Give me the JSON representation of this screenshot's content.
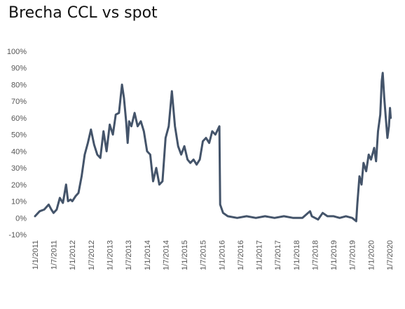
{
  "chart_data": {
    "type": "line",
    "title": "Brecha CCL vs spot",
    "xlabel": "",
    "ylabel": "",
    "y_tick_labels": [
      "100%",
      "90%",
      "80%",
      "70%",
      "60%",
      "50%",
      "40%",
      "30%",
      "20%",
      "10%",
      "0%",
      "-10%"
    ],
    "ylim": [
      -10,
      100
    ],
    "x_tick_labels": [
      "1/1/2011",
      "1/7/2011",
      "1/1/2012",
      "1/7/2012",
      "1/1/2013",
      "1/7/2013",
      "1/1/2014",
      "1/7/2014",
      "1/1/2015",
      "1/7/2015",
      "1/1/2016",
      "1/7/2016",
      "1/1/2017",
      "1/7/2017",
      "1/1/2018",
      "1/7/2018",
      "1/1/2019",
      "1/7/2019",
      "1/1/2020",
      "1/7/2020"
    ],
    "grid": false,
    "legend": "none",
    "line_color": "#44546a",
    "series": [
      {
        "values": [
          [
            "2011-01-01",
            1
          ],
          [
            "2011-02-15",
            4
          ],
          [
            "2011-04-01",
            5
          ],
          [
            "2011-05-15",
            8
          ],
          [
            "2011-06-10",
            5
          ],
          [
            "2011-07-01",
            3
          ],
          [
            "2011-08-01",
            5
          ],
          [
            "2011-09-01",
            12
          ],
          [
            "2011-10-01",
            9
          ],
          [
            "2011-11-01",
            20
          ],
          [
            "2011-11-20",
            10
          ],
          [
            "2011-12-15",
            11
          ],
          [
            "2012-01-01",
            10
          ],
          [
            "2012-02-01",
            13
          ],
          [
            "2012-03-01",
            15
          ],
          [
            "2012-04-01",
            25
          ],
          [
            "2012-05-01",
            38
          ],
          [
            "2012-06-01",
            45
          ],
          [
            "2012-07-01",
            53
          ],
          [
            "2012-08-01",
            44
          ],
          [
            "2012-09-01",
            38
          ],
          [
            "2012-10-01",
            36
          ],
          [
            "2012-11-01",
            52
          ],
          [
            "2012-12-01",
            40
          ],
          [
            "2013-01-01",
            56
          ],
          [
            "2013-02-01",
            50
          ],
          [
            "2013-03-01",
            62
          ],
          [
            "2013-04-01",
            63
          ],
          [
            "2013-05-01",
            80
          ],
          [
            "2013-05-20",
            72
          ],
          [
            "2013-06-10",
            58
          ],
          [
            "2013-06-25",
            45
          ],
          [
            "2013-07-10",
            58
          ],
          [
            "2013-08-01",
            55
          ],
          [
            "2013-09-01",
            63
          ],
          [
            "2013-10-01",
            55
          ],
          [
            "2013-11-01",
            58
          ],
          [
            "2013-12-01",
            52
          ],
          [
            "2014-01-01",
            40
          ],
          [
            "2014-02-01",
            38
          ],
          [
            "2014-03-01",
            22
          ],
          [
            "2014-04-01",
            30
          ],
          [
            "2014-05-01",
            20
          ],
          [
            "2014-06-01",
            22
          ],
          [
            "2014-07-01",
            48
          ],
          [
            "2014-08-01",
            55
          ],
          [
            "2014-09-01",
            76
          ],
          [
            "2014-10-01",
            55
          ],
          [
            "2014-11-01",
            43
          ],
          [
            "2014-12-01",
            38
          ],
          [
            "2015-01-01",
            43
          ],
          [
            "2015-02-01",
            35
          ],
          [
            "2015-03-01",
            33
          ],
          [
            "2015-04-01",
            35
          ],
          [
            "2015-05-01",
            32
          ],
          [
            "2015-06-01",
            35
          ],
          [
            "2015-07-01",
            46
          ],
          [
            "2015-08-01",
            48
          ],
          [
            "2015-09-01",
            45
          ],
          [
            "2015-10-01",
            52
          ],
          [
            "2015-11-01",
            50
          ],
          [
            "2015-12-10",
            55
          ],
          [
            "2015-12-17",
            8
          ],
          [
            "2016-01-15",
            3
          ],
          [
            "2016-03-01",
            1
          ],
          [
            "2016-06-01",
            0
          ],
          [
            "2016-09-01",
            1
          ],
          [
            "2016-12-01",
            0
          ],
          [
            "2017-03-01",
            1
          ],
          [
            "2017-06-01",
            0
          ],
          [
            "2017-09-01",
            1
          ],
          [
            "2017-12-01",
            0
          ],
          [
            "2018-03-01",
            0
          ],
          [
            "2018-05-15",
            4
          ],
          [
            "2018-06-01",
            1
          ],
          [
            "2018-08-01",
            -1
          ],
          [
            "2018-09-15",
            3
          ],
          [
            "2018-11-01",
            1
          ],
          [
            "2019-01-01",
            1
          ],
          [
            "2019-03-01",
            0
          ],
          [
            "2019-05-01",
            1
          ],
          [
            "2019-07-01",
            0
          ],
          [
            "2019-08-10",
            -2
          ],
          [
            "2019-08-20",
            8
          ],
          [
            "2019-09-10",
            25
          ],
          [
            "2019-10-01",
            20
          ],
          [
            "2019-10-20",
            33
          ],
          [
            "2019-11-15",
            28
          ],
          [
            "2019-12-10",
            38
          ],
          [
            "2020-01-01",
            35
          ],
          [
            "2020-02-01",
            42
          ],
          [
            "2020-02-20",
            34
          ],
          [
            "2020-03-10",
            52
          ],
          [
            "2020-04-01",
            62
          ],
          [
            "2020-04-15",
            82
          ],
          [
            "2020-04-25",
            87
          ],
          [
            "2020-05-10",
            72
          ],
          [
            "2020-05-25",
            60
          ],
          [
            "2020-06-10",
            48
          ],
          [
            "2020-06-25",
            55
          ],
          [
            "2020-07-05",
            66
          ],
          [
            "2020-07-12",
            60
          ]
        ]
      }
    ]
  }
}
